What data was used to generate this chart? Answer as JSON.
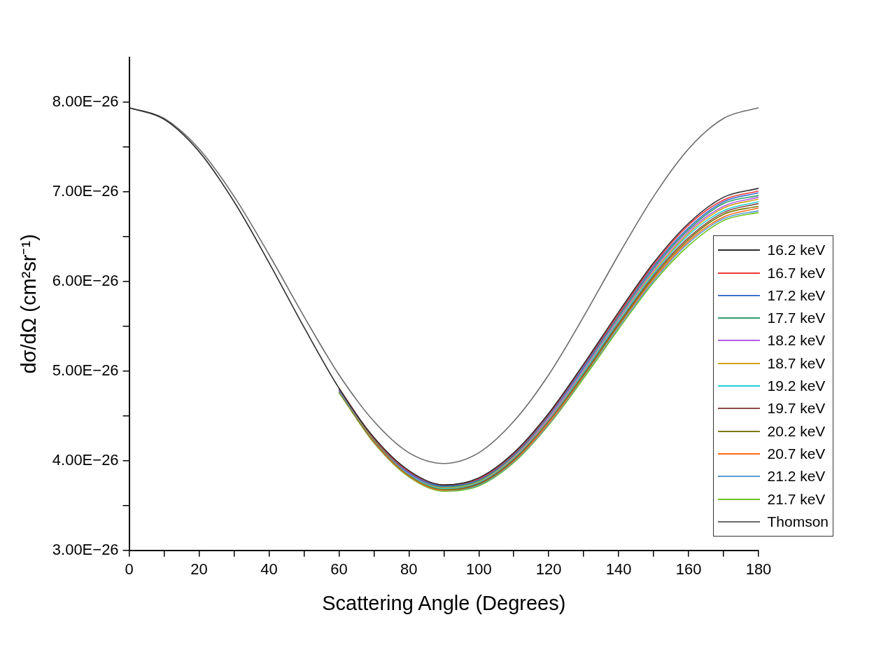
{
  "chart_data": {
    "type": "line",
    "xlabel": "Scattering Angle (Degrees)",
    "ylabel": "dσ/dΩ (cm²sr⁻¹)",
    "x": [
      0,
      10,
      20,
      30,
      40,
      50,
      60,
      70,
      80,
      90,
      100,
      110,
      120,
      130,
      140,
      150,
      160,
      170,
      180
    ],
    "xlim": [
      0,
      180
    ],
    "xticks": [
      0,
      {
        "value": 10,
        "label": null
      },
      20,
      {
        "value": 30,
        "label": null
      },
      40,
      {
        "value": 50,
        "label": null
      },
      60,
      {
        "value": 70,
        "label": null
      },
      80,
      {
        "value": 90,
        "label": null
      },
      100,
      {
        "value": 110,
        "label": null
      },
      120,
      {
        "value": 130,
        "label": null
      },
      140,
      {
        "value": 150,
        "label": null
      },
      160,
      {
        "value": 170,
        "label": null
      },
      180
    ],
    "ylim": [
      3e-26,
      8.5e-26
    ],
    "yticks": [
      {
        "value": 3e-26,
        "label": "3.00E−26"
      },
      {
        "value": 3.5e-26,
        "label": null
      },
      {
        "value": 4e-26,
        "label": "4.00E−26"
      },
      {
        "value": 4.5e-26,
        "label": null
      },
      {
        "value": 5e-26,
        "label": "5.00E−26"
      },
      {
        "value": 5.5e-26,
        "label": null
      },
      {
        "value": 6e-26,
        "label": "6.00E−26"
      },
      {
        "value": 6.5e-26,
        "label": null
      },
      {
        "value": 7e-26,
        "label": "7.00E−26"
      },
      {
        "value": 7.5e-26,
        "label": null
      },
      {
        "value": 8e-26,
        "label": "8.00E−26"
      }
    ],
    "grid": false,
    "legend": "bottom right",
    "marker": "none",
    "line_style": "solid",
    "series": [
      {
        "name": "16.2 keV",
        "color": "#2d2d2d",
        "values": [
          7.94e-26,
          7.81e-26,
          7.45e-26,
          6.89e-26,
          6.21e-26,
          5.49e-26,
          4.81e-26,
          4.26e-26,
          3.89e-26,
          3.73e-26,
          3.81e-26,
          4.09e-26,
          4.53e-26,
          5.08e-26,
          5.66e-26,
          6.21e-26,
          6.65e-26,
          6.94e-26,
          7.04e-26
        ]
      },
      {
        "name": "16.7 keV",
        "color": "#f0363a",
        "values": [
          null,
          null,
          null,
          null,
          null,
          null,
          4.81e-26,
          4.25e-26,
          3.88e-26,
          3.73e-26,
          3.8e-26,
          4.08e-26,
          4.52e-26,
          5.07e-26,
          5.64e-26,
          6.19e-26,
          6.63e-26,
          6.91e-26,
          7.01e-26
        ]
      },
      {
        "name": "17.2 keV",
        "color": "#3f6fd0",
        "values": [
          null,
          null,
          null,
          null,
          null,
          null,
          4.8e-26,
          4.25e-26,
          3.87e-26,
          3.72e-26,
          3.79e-26,
          4.07e-26,
          4.51e-26,
          5.05e-26,
          5.63e-26,
          6.17e-26,
          6.6e-26,
          6.89e-26,
          6.99e-26
        ]
      },
      {
        "name": "17.7 keV",
        "color": "#2e9e6a",
        "values": [
          null,
          null,
          null,
          null,
          null,
          null,
          4.8e-26,
          4.24e-26,
          3.87e-26,
          3.71e-26,
          3.78e-26,
          4.06e-26,
          4.5e-26,
          5.04e-26,
          5.61e-26,
          6.15e-26,
          6.58e-26,
          6.87e-26,
          6.96e-26
        ]
      },
      {
        "name": "18.2 keV",
        "color": "#b45ee6",
        "values": [
          null,
          null,
          null,
          null,
          null,
          null,
          4.79e-26,
          4.24e-26,
          3.86e-26,
          3.71e-26,
          3.78e-26,
          4.05e-26,
          4.48e-26,
          5.02e-26,
          5.59e-26,
          6.13e-26,
          6.56e-26,
          6.84e-26,
          6.94e-26
        ]
      },
      {
        "name": "18.7 keV",
        "color": "#d4a017",
        "values": [
          null,
          null,
          null,
          null,
          null,
          null,
          4.79e-26,
          4.23e-26,
          3.86e-26,
          3.7e-26,
          3.77e-26,
          4.04e-26,
          4.47e-26,
          5.01e-26,
          5.58e-26,
          6.11e-26,
          6.54e-26,
          6.82e-26,
          6.92e-26
        ]
      },
      {
        "name": "19.2 keV",
        "color": "#1fd0d8",
        "values": [
          null,
          null,
          null,
          null,
          null,
          null,
          4.78e-26,
          4.23e-26,
          3.85e-26,
          3.69e-26,
          3.76e-26,
          4.03e-26,
          4.46e-26,
          4.99e-26,
          5.56e-26,
          6.09e-26,
          6.52e-26,
          6.79e-26,
          6.89e-26
        ]
      },
      {
        "name": "19.7 keV",
        "color": "#8b4a4a",
        "values": [
          null,
          null,
          null,
          null,
          null,
          null,
          4.78e-26,
          4.22e-26,
          3.85e-26,
          3.69e-26,
          3.75e-26,
          4.02e-26,
          4.45e-26,
          4.98e-26,
          5.54e-26,
          6.07e-26,
          6.49e-26,
          6.77e-26,
          6.87e-26
        ]
      },
      {
        "name": "20.2 keV",
        "color": "#7a7a00",
        "values": [
          null,
          null,
          null,
          null,
          null,
          null,
          4.77e-26,
          4.22e-26,
          3.84e-26,
          3.68e-26,
          3.74e-26,
          4.01e-26,
          4.44e-26,
          4.96e-26,
          5.52e-26,
          6.05e-26,
          6.47e-26,
          6.75e-26,
          6.84e-26
        ]
      },
      {
        "name": "20.7 keV",
        "color": "#ff6a1a",
        "values": [
          null,
          null,
          null,
          null,
          null,
          null,
          4.77e-26,
          4.21e-26,
          3.83e-26,
          3.67e-26,
          3.74e-26,
          4e-26,
          4.42e-26,
          4.95e-26,
          5.51e-26,
          6.03e-26,
          6.45e-26,
          6.72e-26,
          6.82e-26
        ]
      },
      {
        "name": "21.2 keV",
        "color": "#5b9bd5",
        "values": [
          null,
          null,
          null,
          null,
          null,
          null,
          4.77e-26,
          4.21e-26,
          3.83e-26,
          3.67e-26,
          3.73e-26,
          3.99e-26,
          4.41e-26,
          4.94e-26,
          5.49e-26,
          6.01e-26,
          6.43e-26,
          6.7e-26,
          6.79e-26
        ]
      },
      {
        "name": "21.7 keV",
        "color": "#6cc31f",
        "values": [
          null,
          null,
          null,
          null,
          null,
          null,
          4.76e-26,
          4.2e-26,
          3.82e-26,
          3.66e-26,
          3.72e-26,
          3.98e-26,
          4.4e-26,
          4.92e-26,
          5.47e-26,
          5.99e-26,
          6.4e-26,
          6.68e-26,
          6.77e-26
        ]
      },
      {
        "name": "Thomson",
        "color": "#6b6b6b",
        "values": [
          7.94e-26,
          7.82e-26,
          7.48e-26,
          6.95e-26,
          6.3e-26,
          5.61e-26,
          4.96e-26,
          4.44e-26,
          4.09e-26,
          3.97e-26,
          4.09e-26,
          4.44e-26,
          4.96e-26,
          5.61e-26,
          6.3e-26,
          6.95e-26,
          7.48e-26,
          7.82e-26,
          7.94e-26
        ]
      }
    ]
  }
}
